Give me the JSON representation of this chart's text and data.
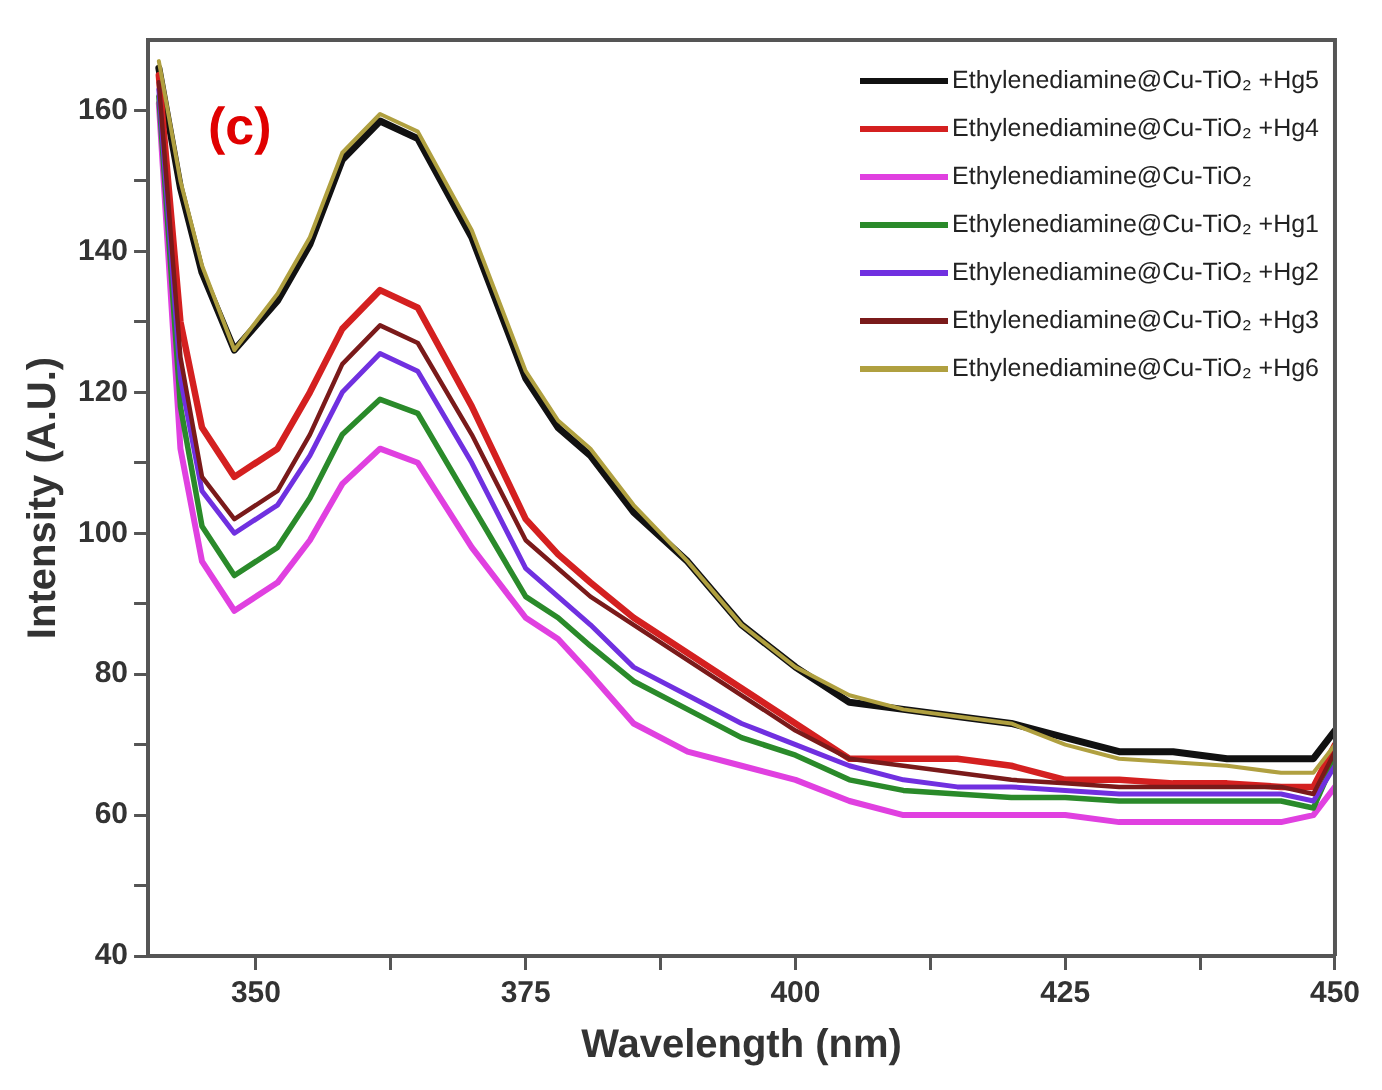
{
  "chart_data": {
    "type": "line",
    "xlabel": "Wavelength (nm)",
    "ylabel": "Intensity (A.U.)",
    "annotations": [
      "(c)"
    ],
    "x": [
      341,
      343,
      345,
      348,
      352,
      355,
      358,
      361.5,
      365,
      370,
      375,
      378,
      381,
      385,
      390,
      395,
      400,
      405,
      410,
      415,
      420,
      425,
      430,
      435,
      440,
      445,
      448,
      450
    ],
    "xlim": [
      340,
      450
    ],
    "xticks": [
      350,
      {
        "value": 362.5,
        "label": null
      },
      375,
      {
        "value": 387.5,
        "label": null
      },
      400,
      {
        "value": 412.5,
        "label": null
      },
      425,
      {
        "value": 437.5,
        "label": null
      },
      450
    ],
    "ylim": [
      40,
      170
    ],
    "yticks": [
      40,
      {
        "value": 50,
        "label": null
      },
      60,
      {
        "value": 70,
        "label": null
      },
      80,
      {
        "value": 90,
        "label": null
      },
      100,
      {
        "value": 110,
        "label": null
      },
      120,
      {
        "value": 130,
        "label": null
      },
      140,
      {
        "value": 150,
        "label": null
      },
      160
    ],
    "legend": "top right",
    "marker": "none",
    "series": [
      {
        "name": "Ethylenediamine@Cu-TiO₂ +Hg5",
        "color": "#111111",
        "values": [
          166,
          149,
          137,
          126,
          133,
          141,
          153,
          158.5,
          156,
          142,
          122,
          115,
          111,
          103,
          96,
          87,
          81,
          76,
          75,
          74,
          73,
          71,
          69,
          69,
          68,
          68,
          68,
          72
        ]
      },
      {
        "name": "Ethylenediamine@Cu-TiO₂ +Hg4",
        "color": "#d42020",
        "values": [
          165,
          130,
          115,
          108,
          112,
          120,
          129,
          134.5,
          132,
          118,
          102,
          97,
          93,
          88,
          83,
          78,
          73,
          68,
          68,
          68,
          67,
          65,
          65,
          64.5,
          64.5,
          64,
          64,
          70
        ]
      },
      {
        "name": "Ethylenediamine@Cu-TiO₂",
        "color": "#e040e0",
        "values": [
          161,
          112,
          96,
          89,
          93,
          99,
          107,
          112,
          110,
          98,
          88,
          85,
          80,
          73,
          69,
          67,
          65,
          62,
          60,
          60,
          60,
          60,
          59,
          59,
          59,
          59,
          60,
          64
        ]
      },
      {
        "name": "Ethylenediamine@Cu-TiO₂ +Hg1",
        "color": "#2a8a2a",
        "values": [
          162,
          118,
          101,
          94,
          98,
          105,
          114,
          119,
          117,
          104,
          91,
          88,
          84,
          79,
          75,
          71,
          68.5,
          65,
          63.5,
          63,
          62.5,
          62.5,
          62,
          62,
          62,
          62,
          61,
          68
        ]
      },
      {
        "name": "Ethylenediamine@Cu-TiO₂ +Hg2",
        "color": "#7030e0",
        "values": [
          163,
          122,
          106,
          100,
          104,
          111,
          120,
          125.5,
          123,
          110,
          95,
          91,
          87,
          81,
          77,
          73,
          70,
          67,
          65,
          64,
          64,
          63.5,
          63,
          63,
          63,
          63,
          62,
          67
        ]
      },
      {
        "name": "Ethylenediamine@Cu-TiO₂ +Hg3",
        "color": "#7a1a1a",
        "values": [
          164,
          125,
          108,
          102,
          106,
          114,
          124,
          129.5,
          127,
          114,
          99,
          95,
          91,
          87,
          82,
          77,
          72,
          68,
          67,
          66,
          65,
          64.5,
          64,
          64,
          64,
          64,
          63,
          69
        ]
      },
      {
        "name": "Ethylenediamine@Cu-TiO₂ +Hg6",
        "color": "#b0a040",
        "values": [
          167,
          150,
          138,
          126,
          134,
          142,
          154,
          159.5,
          157,
          143,
          123,
          116,
          112,
          104,
          96,
          87,
          81,
          77,
          75,
          74,
          73,
          70,
          68,
          67.5,
          67,
          66,
          66,
          70
        ]
      }
    ]
  }
}
